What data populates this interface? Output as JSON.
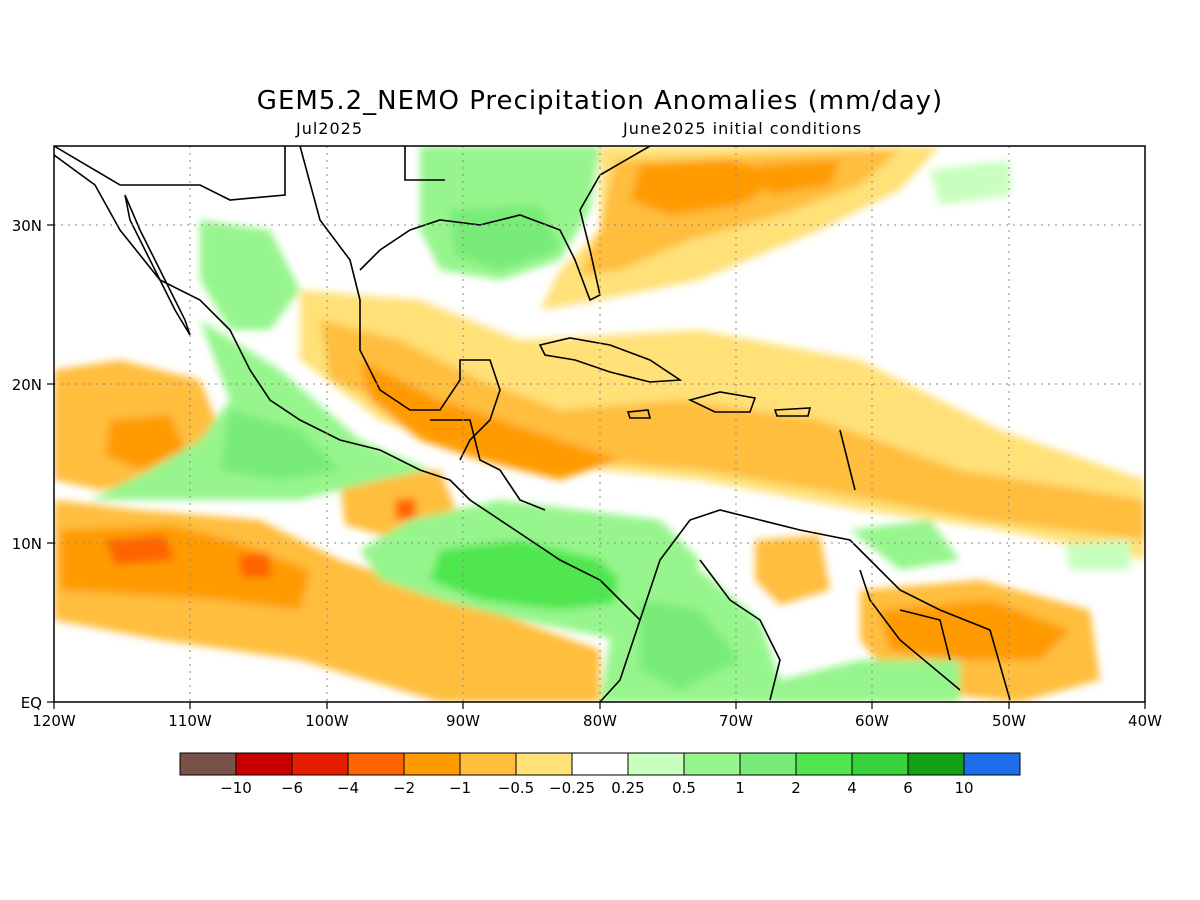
{
  "title": "GEM5.2_NEMO Precipitation Anomalies (mm/day)",
  "subtitle_left": "Jul2025",
  "subtitle_right": "June2025 initial conditions",
  "axes": {
    "lon_labels": [
      "120W",
      "110W",
      "100W",
      "90W",
      "80W",
      "70W",
      "60W",
      "50W",
      "40W"
    ],
    "lat_labels": [
      "30N",
      "20N",
      "10N",
      "EQ"
    ],
    "lon_range": [
      -120,
      -40
    ],
    "lat_range": [
      0,
      35
    ],
    "grid": true
  },
  "colorbar": {
    "colors": [
      "#7a5149",
      "#c80000",
      "#e61e00",
      "#ff6400",
      "#ff9b00",
      "#ffbe3c",
      "#ffe178",
      "#ffffff",
      "#c8ffbe",
      "#96f58c",
      "#78eb78",
      "#50e650",
      "#37d23c",
      "#14a014",
      "#1e6eeb"
    ],
    "labels": [
      "−10",
      "−6",
      "−4",
      "−2",
      "−1",
      "−0.5",
      "−0.25",
      "0.25",
      "0.5",
      "1",
      "2",
      "4",
      "6",
      "10"
    ]
  }
}
